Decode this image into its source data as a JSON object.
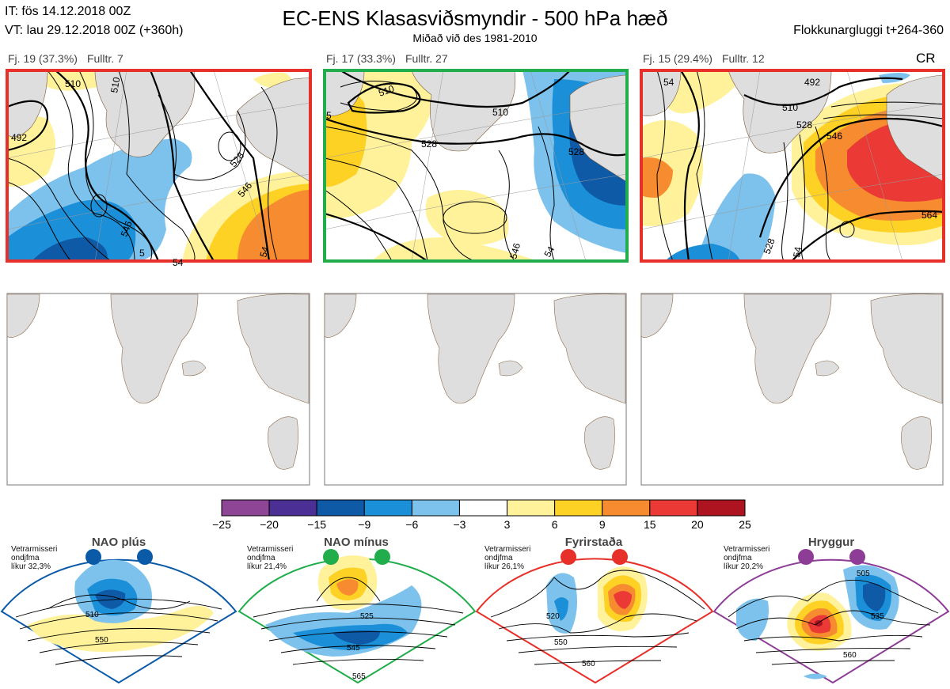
{
  "header": {
    "issue": "IT: fös 14.12.2018 00Z",
    "valid": "VT: lau 29.12.2018 00Z  (+360h)",
    "title": "EC-ENS Klasasviðsmyndir - 500 hPa hæð",
    "subtitle": "Miðað við des 1981-2010",
    "window": "Flokkunargluggi t+264-360",
    "corner_code": "CR"
  },
  "clusters": [
    {
      "members": "Fj. 19 (37.3%)",
      "representative": "Fulltr. 7",
      "frame_color": "#e8302a"
    },
    {
      "members": "Fj. 17 (33.3%)",
      "representative": "Fulltr. 27",
      "frame_color": "#21ad4b"
    },
    {
      "members": "Fj. 15 (29.4%)",
      "representative": "Fulltr. 12",
      "frame_color": "#e8302a"
    }
  ],
  "contour_labels": {
    "map1": [
      "510",
      "510",
      "492",
      "528",
      "546",
      "546",
      "54",
      "54",
      "5"
    ],
    "map2": [
      "510",
      "528",
      "510",
      "528",
      "546",
      "54",
      "5"
    ],
    "map3": [
      "492",
      "510",
      "528",
      "546",
      "564",
      "528",
      "54",
      "54"
    ]
  },
  "regimes": [
    {
      "name": "NAO plús",
      "note": [
        "Vetrarmisseri",
        "ondjfma",
        "líkur 32,3%"
      ],
      "color": "#0b5aa8",
      "labels": [
        "510",
        "550"
      ]
    },
    {
      "name": "NAO mínus",
      "note": [
        "Vetrarmisseri",
        "ondjfma",
        "líkur 21,4%"
      ],
      "color": "#21ad4b",
      "labels": [
        "525",
        "545",
        "565"
      ]
    },
    {
      "name": "Fyrirstaða",
      "note": [
        "Vetrarmisseri",
        "ondjfma",
        "líkur 26,1%"
      ],
      "color": "#e8302a",
      "labels": [
        "520",
        "550",
        "560"
      ]
    },
    {
      "name": "Hryggur",
      "note": [
        "Vetrarmisseri",
        "ondjfma",
        "líkur 20,2%"
      ],
      "color": "#8e3d96",
      "labels": [
        "505",
        "535",
        "560"
      ]
    }
  ],
  "chart_data": {
    "type": "heatmap",
    "title": "EC-ENS Klasasviðsmyndir - 500 hPa hæð",
    "colorbar": {
      "ticks": [
        "−25",
        "−20",
        "−15",
        "−9",
        "−6",
        "−3",
        "3",
        "6",
        "9",
        "15",
        "20",
        "25"
      ],
      "bins": [
        {
          "from": -25,
          "to": -20,
          "color": "#8e4596"
        },
        {
          "from": -20,
          "to": -15,
          "color": "#4b2f95"
        },
        {
          "from": -15,
          "to": -9,
          "color": "#0e5aa7"
        },
        {
          "from": -9,
          "to": -6,
          "color": "#1b8fd8"
        },
        {
          "from": -6,
          "to": -3,
          "color": "#7cc2ec"
        },
        {
          "from": -3,
          "to": 3,
          "color": "#ffffff"
        },
        {
          "from": 3,
          "to": 6,
          "color": "#fff29a"
        },
        {
          "from": 6,
          "to": 9,
          "color": "#fed125"
        },
        {
          "from": 9,
          "to": 15,
          "color": "#f68b30"
        },
        {
          "from": 15,
          "to": 20,
          "color": "#eb3a35"
        },
        {
          "from": 20,
          "to": 25,
          "color": "#ae1320"
        }
      ]
    }
  }
}
